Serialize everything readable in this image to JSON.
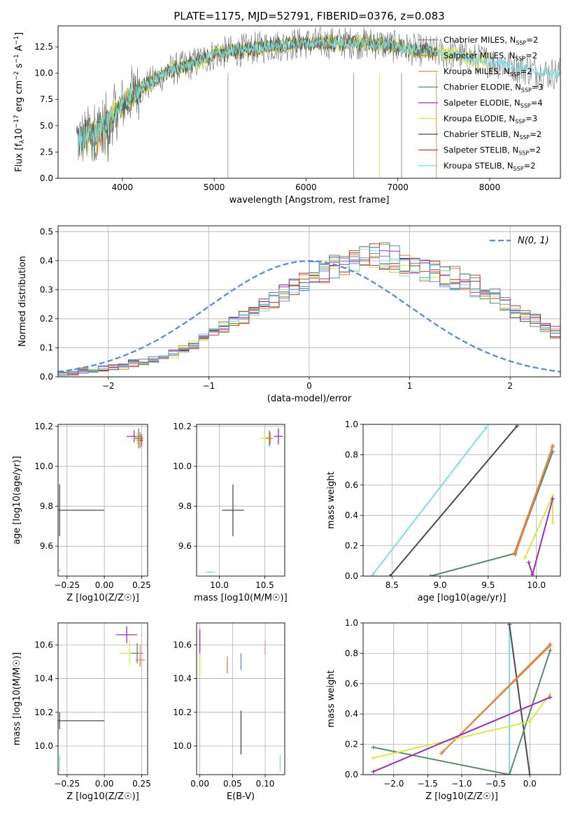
{
  "figure_title": "PLATE=1175, MJD=52791, FIBERID=0376, z=0.083",
  "colors": {
    "Chabrier MILES": "#808080",
    "Salpeter MILES": "#e37b3a",
    "Kroupa MILES": "#d88b4a",
    "Chabrier ELODIE": "#5a8a6a",
    "Salpeter ELODIE": "#9b2fb0",
    "Kroupa ELODIE": "#d8e64a",
    "Chabrier STELIB": "#4a4a4a",
    "Salpeter STELIB": "#c0392b",
    "Kroupa STELIB": "#7fdbe0",
    "gaussian": "#5b8bd9"
  },
  "chart_data": [
    {
      "id": "spectrum",
      "type": "line",
      "xlabel": "wavelength [Angstrom, rest frame]",
      "ylabel": "Flux [f_λ 10^-17 erg cm^-2 s^-1 A^-1]",
      "xlim": [
        3300,
        8770
      ],
      "ylim": [
        0,
        14.5
      ],
      "xticks": [
        4000,
        5000,
        6000,
        7000,
        8000
      ],
      "yticks": [
        0.0,
        2.5,
        5.0,
        7.5,
        10.0,
        12.5
      ],
      "x_knots": [
        3500,
        3700,
        3900,
        4100,
        4300,
        4500,
        4800,
        5000,
        5300,
        5600,
        5900,
        6200,
        6500,
        6800,
        7100,
        7400,
        7700,
        8000,
        8300,
        8600
      ],
      "y_knots": [
        3.5,
        4.5,
        6.0,
        8.0,
        9.0,
        10.2,
        11.0,
        11.8,
        12.2,
        12.6,
        12.8,
        12.9,
        12.9,
        12.8,
        12.3,
        12.0,
        11.6,
        11.1,
        10.6,
        10.0
      ],
      "legend": [
        {
          "label": "Chabrier MILES, N_SSP=2",
          "color": "#808080"
        },
        {
          "label": "Salpeter MILES, N_SSP=2",
          "color": "#e37b3a"
        },
        {
          "label": "Kroupa MILES, N_SSP=2",
          "color": "#d88b4a"
        },
        {
          "label": "Chabrier ELODIE, N_SSP=3",
          "color": "#5a8a6a"
        },
        {
          "label": "Salpeter ELODIE, N_SSP=4",
          "color": "#9b2fb0"
        },
        {
          "label": "Kroupa ELODIE, N_SSP=3",
          "color": "#d8e64a"
        },
        {
          "label": "Chabrier STELIB, N_SSP=2",
          "color": "#4a4a4a"
        },
        {
          "label": "Salpeter STELIB, N_SSP=2",
          "color": "#c0392b"
        },
        {
          "label": "Kroupa STELIB, N_SSP=2",
          "color": "#7fdbe0"
        }
      ]
    },
    {
      "id": "residuals",
      "type": "line",
      "xlabel": "(data-model)/error",
      "ylabel": "Normed distribution",
      "xlim": [
        -2.5,
        2.5
      ],
      "ylim": [
        0,
        0.52
      ],
      "xticks": [
        -2,
        -1,
        0,
        1,
        2
      ],
      "yticks": [
        0.0,
        0.1,
        0.2,
        0.3,
        0.4,
        0.5
      ],
      "legend_label": "N(0, 1)",
      "legend_placement": "top-right",
      "bin_width": 0.1,
      "bin_start": -2.5,
      "series_colors": [
        "#808080",
        "#e37b3a",
        "#5a8a6a",
        "#9b2fb0",
        "#d8e64a",
        "#4a4a4a",
        "#c0392b",
        "#7fdbe0",
        "#5b8bd9"
      ],
      "histogram_template": [
        0.01,
        0.015,
        0.02,
        0.025,
        0.03,
        0.035,
        0.04,
        0.045,
        0.05,
        0.06,
        0.07,
        0.08,
        0.095,
        0.11,
        0.13,
        0.15,
        0.17,
        0.19,
        0.21,
        0.23,
        0.25,
        0.27,
        0.29,
        0.31,
        0.33,
        0.35,
        0.37,
        0.38,
        0.39,
        0.4,
        0.41,
        0.41,
        0.41,
        0.4,
        0.39,
        0.38,
        0.37,
        0.36,
        0.35,
        0.34,
        0.33,
        0.31,
        0.29,
        0.27,
        0.25,
        0.23,
        0.21,
        0.19,
        0.17,
        0.15,
        0.13
      ]
    },
    {
      "id": "age-vs-Z",
      "type": "scatter",
      "xlabel": "Z [log10(Z/Z☉)]",
      "ylabel": "age [log10(age/yr)]",
      "xlim": [
        -0.31,
        0.29
      ],
      "ylim": [
        9.45,
        10.21
      ],
      "xticks": [
        -0.25,
        0.0,
        0.25
      ],
      "yticks": [
        9.6,
        9.8,
        10.0,
        10.2
      ],
      "points": [
        {
          "x": -0.3,
          "y": 9.78,
          "xerr": 0.3,
          "yerr": 0.13,
          "color": "#4a4a4a"
        },
        {
          "x": -0.3,
          "y": 9.48,
          "xerr": 0.0,
          "yerr": 0.005,
          "color": "#7fdbe0"
        },
        {
          "x": 0.2,
          "y": 10.15,
          "xerr": 0.05,
          "yerr": 0.03,
          "color": "#9b2fb0"
        },
        {
          "x": 0.22,
          "y": 10.14,
          "xerr": 0.04,
          "yerr": 0.03,
          "color": "#d8e64a"
        },
        {
          "x": 0.23,
          "y": 10.14,
          "xerr": 0.03,
          "yerr": 0.05,
          "color": "#5a8a6a"
        },
        {
          "x": 0.24,
          "y": 10.13,
          "xerr": 0.02,
          "yerr": 0.04,
          "color": "#e37b3a"
        },
        {
          "x": 0.25,
          "y": 10.13,
          "xerr": 0.01,
          "yerr": 0.03,
          "color": "#c0392b"
        }
      ]
    },
    {
      "id": "age-vs-mass",
      "type": "scatter",
      "xlabel": "mass [log10(M/M☉)]",
      "ylabel": "",
      "xlim": [
        9.75,
        10.72
      ],
      "ylim": [
        9.45,
        10.21
      ],
      "xticks": [
        10.0,
        10.5
      ],
      "yticks": [
        9.6,
        9.8,
        10.0,
        10.2
      ],
      "points": [
        {
          "x": 10.15,
          "y": 9.78,
          "xerr": 0.12,
          "yerr": 0.13,
          "color": "#4a4a4a"
        },
        {
          "x": 9.9,
          "y": 9.47,
          "xerr": 0.05,
          "yerr": 0.005,
          "color": "#7fdbe0"
        },
        {
          "x": 10.5,
          "y": 10.14,
          "xerr": 0.05,
          "yerr": 0.03,
          "color": "#d8e64a"
        },
        {
          "x": 10.55,
          "y": 10.14,
          "xerr": 0.04,
          "yerr": 0.04,
          "color": "#5a8a6a"
        },
        {
          "x": 10.56,
          "y": 10.14,
          "xerr": 0.03,
          "yerr": 0.03,
          "color": "#e37b3a"
        },
        {
          "x": 10.65,
          "y": 10.15,
          "xerr": 0.05,
          "yerr": 0.04,
          "color": "#9b2fb0"
        }
      ]
    },
    {
      "id": "weight-vs-age",
      "type": "line",
      "xlabel": "age [log10(age/yr)]",
      "ylabel": "mass weight",
      "xlim": [
        8.2,
        10.25
      ],
      "ylim": [
        0,
        1
      ],
      "xticks": [
        8.5,
        9.0,
        9.5,
        10.0
      ],
      "yticks": [
        0.0,
        0.2,
        0.4,
        0.6,
        0.8,
        1.0
      ],
      "series": [
        {
          "color": "#7fdbe0",
          "x": [
            8.3,
            9.48
          ],
          "y": [
            0.01,
            0.98
          ]
        },
        {
          "color": "#4a4a4a",
          "x": [
            8.48,
            9.8
          ],
          "y": [
            0.0,
            0.99
          ]
        },
        {
          "color": "#5a8a6a",
          "x": [
            8.9,
            9.78,
            10.17
          ],
          "y": [
            0.0,
            0.15,
            0.82
          ]
        },
        {
          "color": "#e37b3a",
          "x": [
            9.78,
            10.17
          ],
          "y": [
            0.14,
            0.86
          ]
        },
        {
          "color": "#d88b4a",
          "x": [
            9.77,
            10.17
          ],
          "y": [
            0.15,
            0.85
          ]
        },
        {
          "color": "#d8e64a",
          "x": [
            9.88,
            10.17,
            10.17
          ],
          "y": [
            0.12,
            0.53,
            0.35
          ]
        },
        {
          "color": "#9b2fb0",
          "x": [
            9.92,
            9.96,
            10.17
          ],
          "y": [
            0.09,
            0.01,
            0.51
          ]
        }
      ]
    },
    {
      "id": "mass-vs-Z",
      "type": "scatter",
      "xlabel": "Z [log10(Z/Z☉)]",
      "ylabel": "mass [log10(M/M☉)]",
      "xlim": [
        -0.31,
        0.29
      ],
      "ylim": [
        9.83,
        10.73
      ],
      "xticks": [
        -0.25,
        0.0,
        0.25
      ],
      "yticks": [
        10.0,
        10.2,
        10.4,
        10.6
      ],
      "points": [
        {
          "x": -0.3,
          "y": 10.15,
          "xerr": 0.3,
          "yerr": 0.05,
          "color": "#4a4a4a"
        },
        {
          "x": -0.3,
          "y": 9.9,
          "xerr": 0.0,
          "yerr": 0.05,
          "color": "#7fdbe0"
        },
        {
          "x": 0.15,
          "y": 10.66,
          "xerr": 0.07,
          "yerr": 0.05,
          "color": "#9b2fb0"
        },
        {
          "x": 0.17,
          "y": 10.55,
          "xerr": 0.07,
          "yerr": 0.07,
          "color": "#d8e64a"
        },
        {
          "x": 0.22,
          "y": 10.55,
          "xerr": 0.04,
          "yerr": 0.06,
          "color": "#5a8a6a"
        },
        {
          "x": 0.24,
          "y": 10.51,
          "xerr": 0.03,
          "yerr": 0.04,
          "color": "#e37b3a"
        },
        {
          "x": 0.24,
          "y": 10.55,
          "xerr": 0.01,
          "yerr": 0.05,
          "color": "#f08a8a"
        }
      ]
    },
    {
      "id": "mass-vs-EBV",
      "type": "scatter",
      "xlabel": "E(B-V)",
      "ylabel": "",
      "xlim": [
        -0.005,
        0.13
      ],
      "ylim": [
        9.83,
        10.73
      ],
      "xticks": [
        0.0,
        0.05,
        0.1
      ],
      "yticks": [
        10.0,
        10.2,
        10.4,
        10.6
      ],
      "points": [
        {
          "x": 0.0,
          "y": 10.62,
          "xerr": 0.0,
          "yerr": 0.07,
          "color": "#9b2fb0"
        },
        {
          "x": 0.0,
          "y": 10.48,
          "xerr": 0.0,
          "yerr": 0.06,
          "color": "#d8e64a"
        },
        {
          "x": 0.042,
          "y": 10.48,
          "xerr": 0.0,
          "yerr": 0.05,
          "color": "#e37b3a"
        },
        {
          "x": 0.063,
          "y": 10.5,
          "xerr": 0.0,
          "yerr": 0.05,
          "color": "#5b8bd9"
        },
        {
          "x": 0.063,
          "y": 10.08,
          "xerr": 0.0,
          "yerr": 0.13,
          "color": "#4a4a4a"
        },
        {
          "x": 0.1,
          "y": 10.58,
          "xerr": 0.0,
          "yerr": 0.04,
          "color": "#f08a8a"
        },
        {
          "x": 0.123,
          "y": 9.9,
          "xerr": 0.0,
          "yerr": 0.05,
          "color": "#7fdbe0"
        }
      ]
    },
    {
      "id": "weight-vs-Z",
      "type": "line",
      "xlabel": "Z [log10(Z/Z☉)]",
      "ylabel": "mass weight",
      "xlim": [
        -2.45,
        0.45
      ],
      "ylim": [
        0,
        1
      ],
      "xticks": [
        -2.0,
        -1.5,
        -1.0,
        -0.5,
        0.0
      ],
      "yticks": [
        0.0,
        0.2,
        0.4,
        0.6,
        0.8,
        1.0
      ],
      "series": [
        {
          "color": "#7fdbe0",
          "x": [
            -0.3,
            -0.3
          ],
          "y": [
            0.99,
            0.0
          ]
        },
        {
          "color": "#4a4a4a",
          "x": [
            -0.3,
            0.0
          ],
          "y": [
            0.99,
            0.0
          ]
        },
        {
          "color": "#5a8a6a",
          "x": [
            -2.3,
            -0.3,
            0.3
          ],
          "y": [
            0.18,
            0.0,
            0.82
          ]
        },
        {
          "color": "#e37b3a",
          "x": [
            -1.3,
            0.3
          ],
          "y": [
            0.14,
            0.86
          ]
        },
        {
          "color": "#d88b4a",
          "x": [
            -1.28,
            0.3
          ],
          "y": [
            0.15,
            0.85
          ]
        },
        {
          "color": "#d8e64a",
          "x": [
            -2.3,
            0.0,
            0.3
          ],
          "y": [
            0.11,
            0.35,
            0.53
          ]
        },
        {
          "color": "#9b2fb0",
          "x": [
            -2.3,
            0.3
          ],
          "y": [
            0.02,
            0.51
          ]
        }
      ]
    }
  ]
}
